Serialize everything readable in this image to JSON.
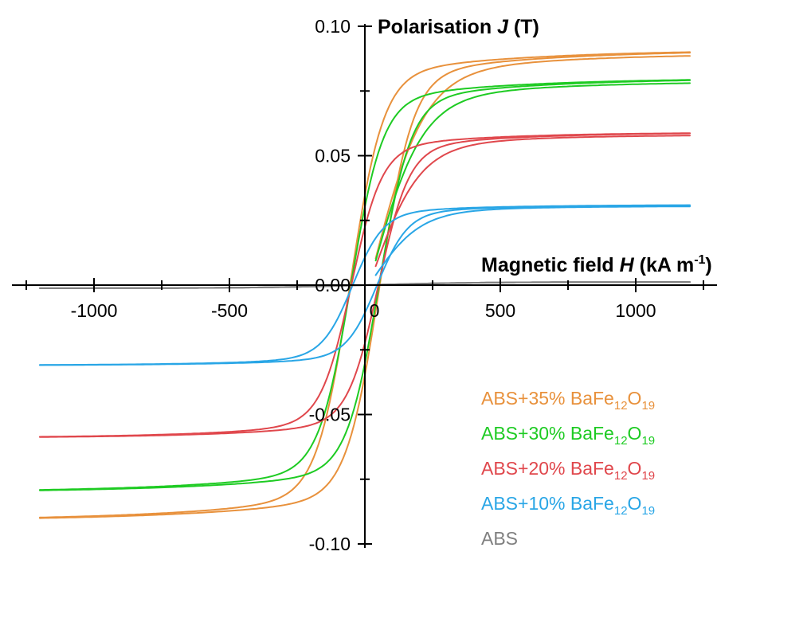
{
  "chart_data": {
    "type": "line",
    "title": "",
    "xlabel": {
      "pre": "Magnetic field ",
      "var": "H",
      "post": " (kA m",
      "sup": "-1",
      "end": ")"
    },
    "ylabel": {
      "pre": "Polarisation ",
      "var": "J",
      "post": " (T)"
    },
    "xlim": [
      -1300,
      1300
    ],
    "ylim": [
      -0.1,
      0.1
    ],
    "x_ticks": [
      -1000,
      -500,
      0,
      500,
      1000
    ],
    "x_tick_labels": [
      "-1000",
      "-500",
      "0",
      "500",
      "1000"
    ],
    "y_ticks": [
      -0.1,
      -0.05,
      0.0,
      0.05,
      0.1
    ],
    "y_tick_labels": [
      "-0.10",
      "-0.05",
      "0.00",
      "0.05",
      "0.10"
    ],
    "grid": false,
    "legend_position": "bottom-right",
    "series": [
      {
        "name": "ABS+35% BaFe12O19",
        "label": {
          "base": "ABS+35% BaFe",
          "sub1": "12",
          "mid": "O",
          "sub2": "19"
        },
        "color": "#e8913c",
        "Ms": 0.091,
        "Hc": 55,
        "width": 120,
        "tail": 520,
        "soft": 0.0
      },
      {
        "name": "ABS+30% BaFe12O19",
        "label": {
          "base": "ABS+30% BaFe",
          "sub1": "12",
          "mid": "O",
          "sub2": "19"
        },
        "color": "#1ecb23",
        "Ms": 0.08,
        "Hc": 52,
        "width": 115,
        "tail": 480,
        "soft": 0.0
      },
      {
        "name": "ABS+20% BaFe12O19",
        "label": {
          "base": "ABS+20% BaFe",
          "sub1": "12",
          "mid": "O",
          "sub2": "19"
        },
        "color": "#e0474c",
        "Ms": 0.059,
        "Hc": 50,
        "width": 110,
        "tail": 400,
        "soft": 0.0
      },
      {
        "name": "ABS+10% BaFe12O19",
        "label": {
          "base": "ABS+10% BaFe",
          "sub1": "12",
          "mid": "O",
          "sub2": "19"
        },
        "color": "#29a6e6",
        "Ms": 0.031,
        "Hc": 45,
        "width": 110,
        "tail": 360,
        "soft": 0.0
      },
      {
        "name": "ABS",
        "label": {
          "base": "ABS",
          "sub1": "",
          "mid": "",
          "sub2": ""
        },
        "color": "#7f7f7f",
        "Ms": 0.0012,
        "Hc": 0,
        "width": 400,
        "tail": 400,
        "soft": 0.0
      }
    ]
  },
  "colors": {
    "axis": "#000000"
  }
}
